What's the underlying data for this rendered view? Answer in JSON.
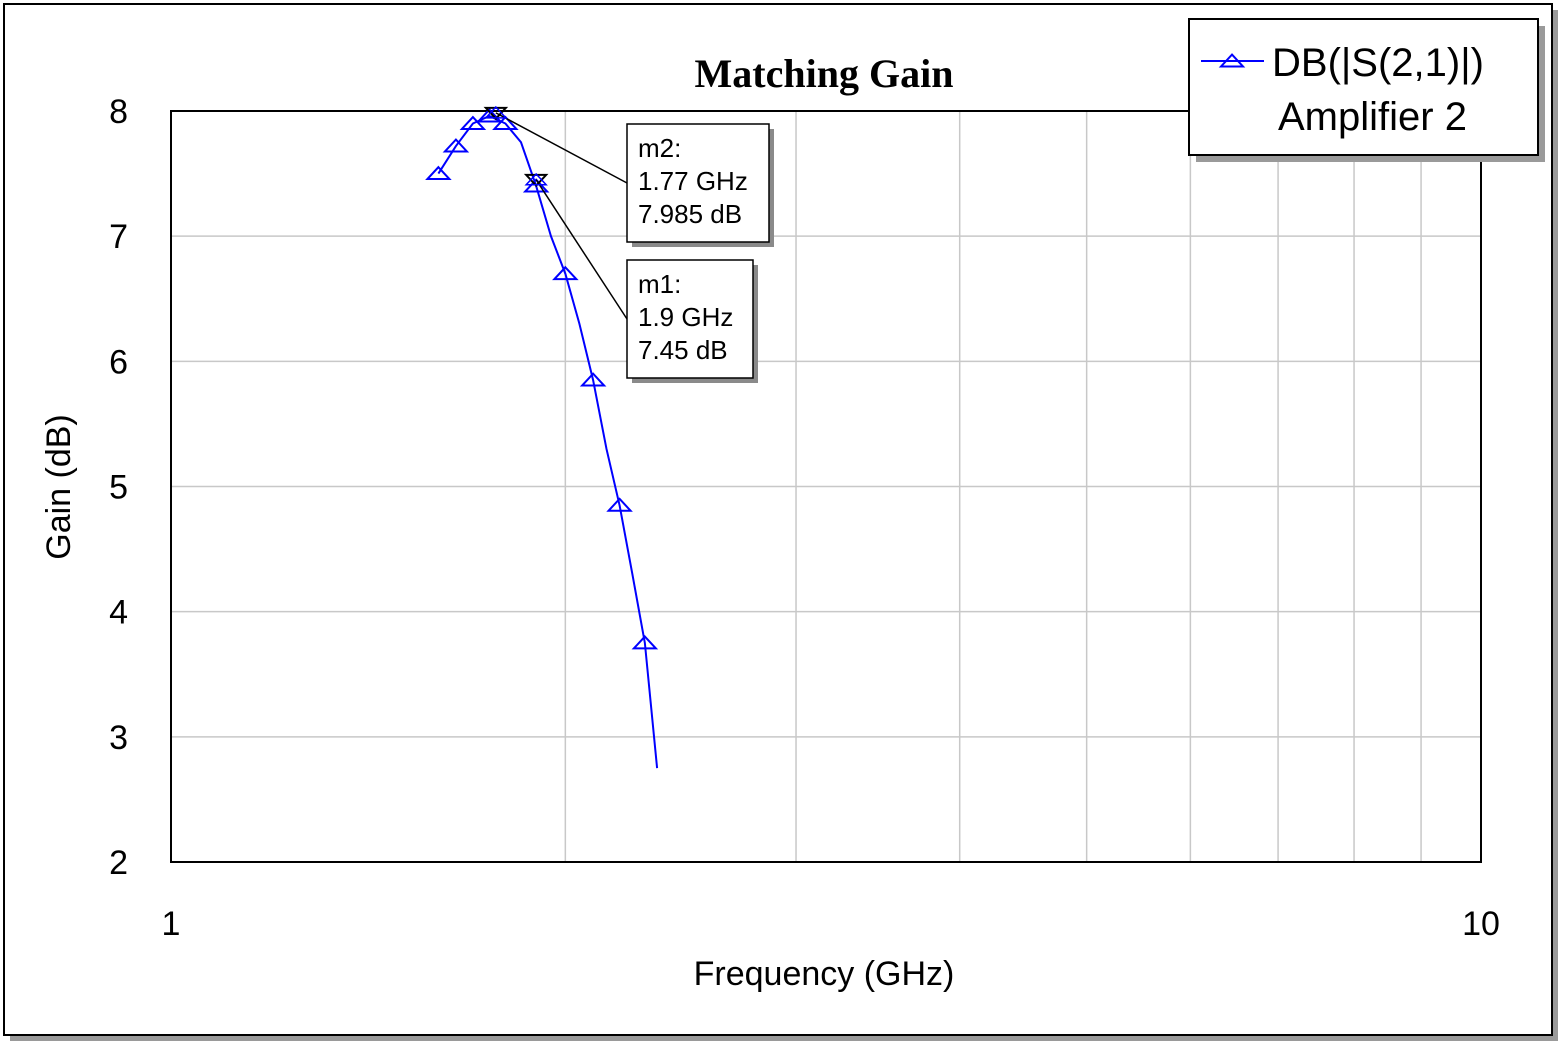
{
  "chart_data": {
    "type": "line",
    "title": "Matching Gain",
    "xlabel": "Frequency (GHz)",
    "ylabel": "Gain (dB)",
    "xscale": "log",
    "xlim": [
      1,
      10
    ],
    "ylim": [
      2,
      8
    ],
    "x_ticks": [
      "1",
      "10"
    ],
    "y_ticks": [
      "2",
      "3",
      "4",
      "5",
      "6",
      "7",
      "8"
    ],
    "grid": true,
    "legend_position": "top-right",
    "series": [
      {
        "name": "DB(|S(2,1)|)",
        "name_line2": "Amplifier 2",
        "color": "#0000ff",
        "marker": "triangle",
        "x": [
          1.6,
          1.65,
          1.7,
          1.75,
          1.8,
          1.85,
          1.9,
          1.95,
          2.0,
          2.05,
          2.1,
          2.15,
          2.2,
          2.25,
          2.3
        ],
        "y": [
          7.5,
          7.72,
          7.9,
          7.96,
          7.9,
          7.75,
          7.4,
          7.0,
          6.7,
          6.3,
          5.85,
          5.3,
          4.85,
          4.3,
          3.75
        ],
        "line_end": {
          "x": 2.35,
          "y": 2.75
        },
        "marker_indices": [
          0,
          1,
          2,
          3,
          4,
          6,
          8,
          10,
          12,
          14
        ]
      }
    ],
    "markers": [
      {
        "label": "m2:",
        "x_text": "1.77 GHz",
        "y_text": "7.985 dB",
        "x": 1.77,
        "y": 7.985
      },
      {
        "label": "m1:",
        "x_text": "1.9 GHz",
        "y_text": "7.45 dB",
        "x": 1.9,
        "y": 7.45
      }
    ]
  }
}
